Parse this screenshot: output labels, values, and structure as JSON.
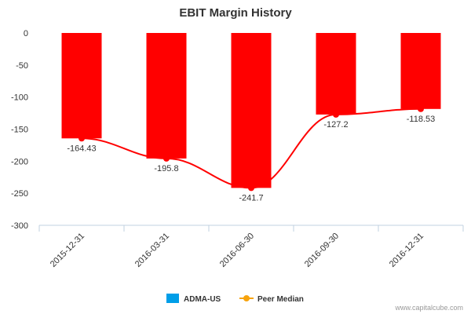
{
  "chart_data": {
    "type": "bar",
    "title": "EBIT Margin History",
    "categories": [
      "2015-12-31",
      "2016-03-31",
      "2016-06-30",
      "2016-09-30",
      "2016-12-31"
    ],
    "series": [
      {
        "name": "ADMA-US",
        "type": "bar",
        "values": [
          -164.43,
          -195.8,
          -241.7,
          -127.2,
          -118.53
        ]
      },
      {
        "name": "Peer Median",
        "type": "line",
        "values": [
          -164.43,
          -195.8,
          -241.7,
          -127.2,
          -118.53
        ]
      }
    ],
    "data_labels": [
      "-164.43",
      "-195.8",
      "-241.7",
      "-127.2",
      "-118.53"
    ],
    "yticks": [
      0,
      -50,
      -100,
      -150,
      -200,
      -250,
      -300
    ],
    "ylim": [
      -300,
      0
    ],
    "legend_position": "bottom",
    "grid": false,
    "colors": {
      "bar": "#ff0000",
      "line": "#ff0000",
      "legend_bar": "#009ee8",
      "legend_line": "#f7a30c"
    }
  },
  "credit": "www.capitalcube.com"
}
